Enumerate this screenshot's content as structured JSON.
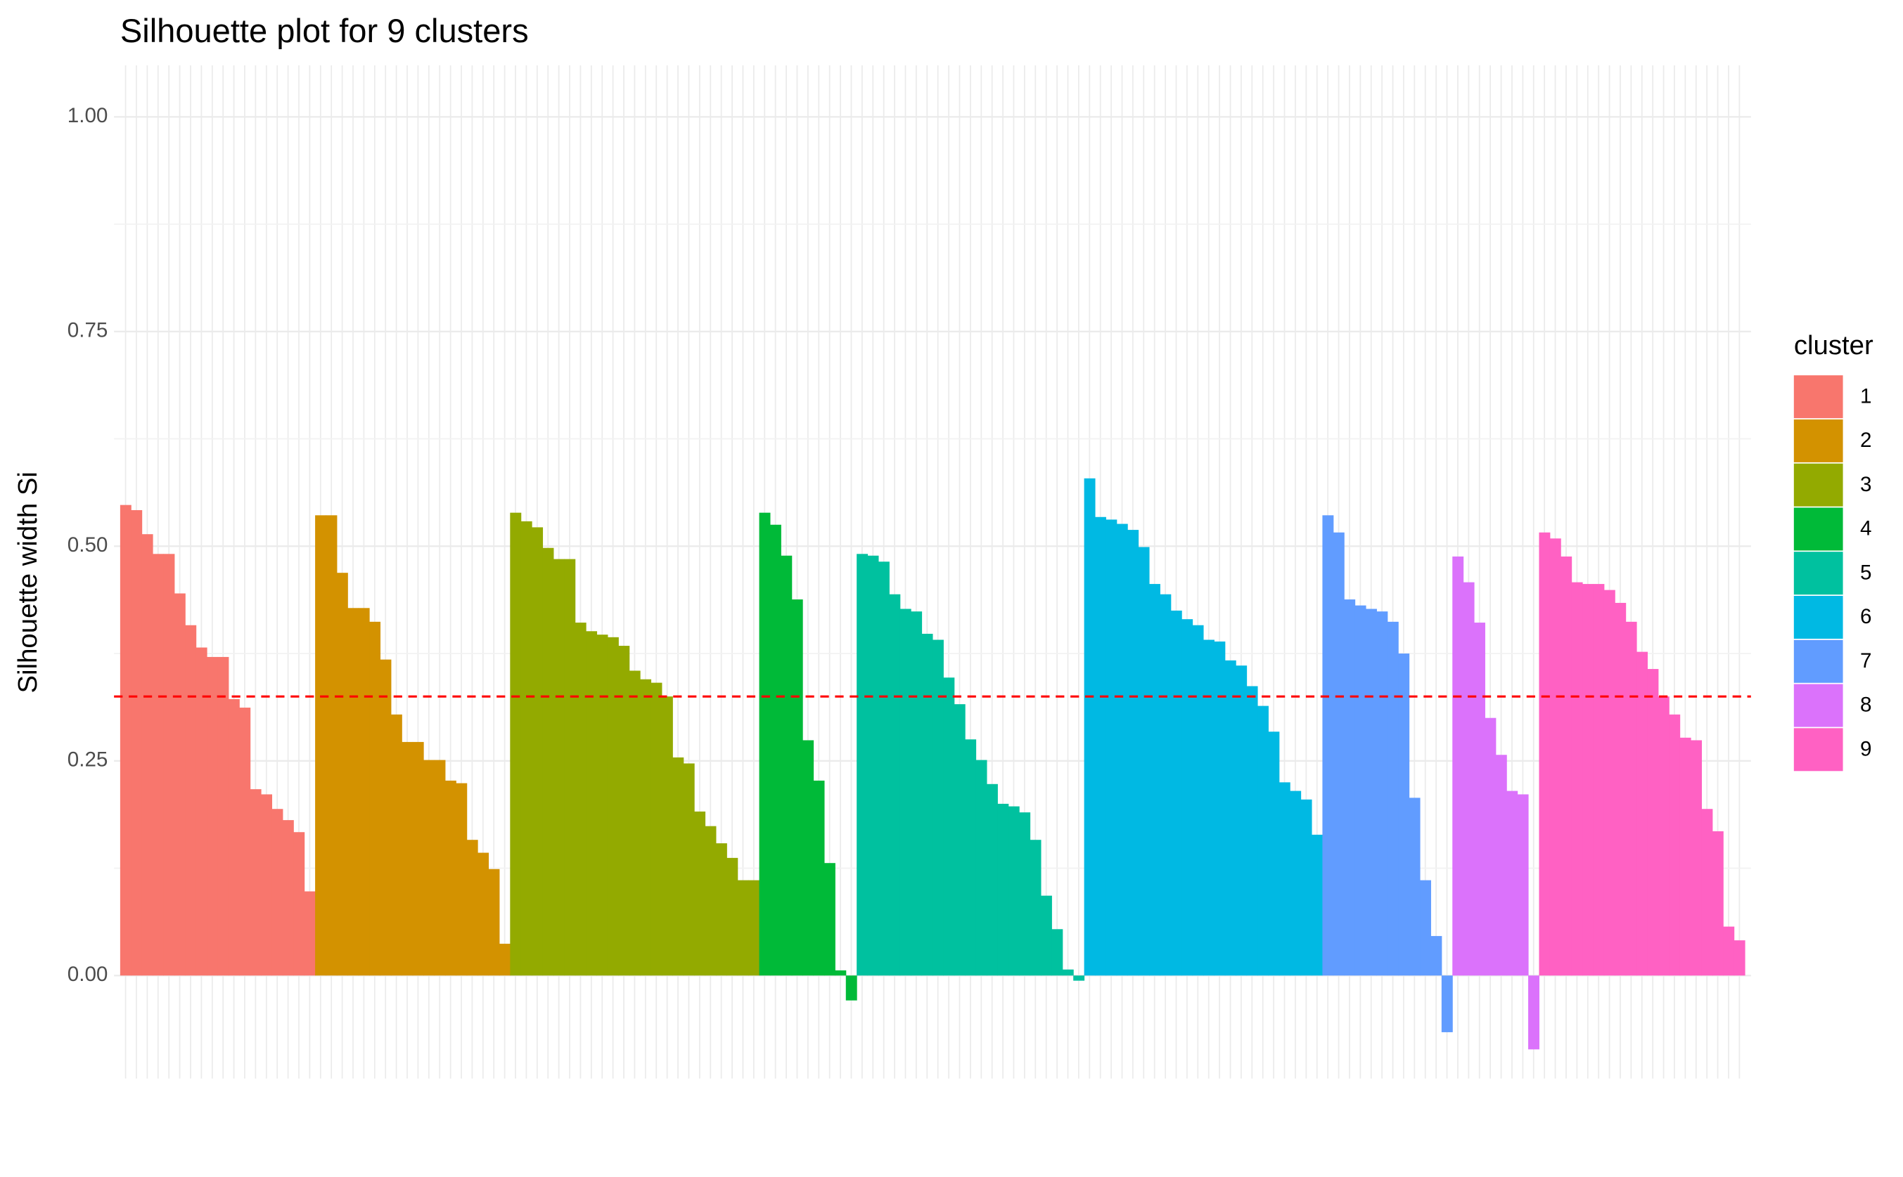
{
  "chart_data": {
    "type": "bar",
    "title": "Silhouette plot for 9 clusters",
    "y_label": "Silhouette width Si",
    "legend_title": "cluster",
    "ylim": [
      -0.12,
      1.06
    ],
    "yticks": [
      {
        "value": 0,
        "label": "0.00"
      },
      {
        "value": 0.25,
        "label": "0.25"
      },
      {
        "value": 0.5,
        "label": "0.50"
      },
      {
        "value": 0.75,
        "label": "0.75"
      },
      {
        "value": 1,
        "label": "1.00"
      }
    ],
    "grid": true,
    "legend": "right",
    "mean_line": {
      "value": 0.325,
      "color": "#ff0000"
    },
    "series": [
      {
        "name": "1",
        "color": "#F8766D",
        "values": [
          0.548,
          0.542,
          0.514,
          0.491,
          0.491,
          0.445,
          0.408,
          0.382,
          0.371,
          0.371,
          0.322,
          0.312,
          0.217,
          0.211,
          0.194,
          0.181,
          0.167,
          0.098
        ]
      },
      {
        "name": "2",
        "color": "#D39200",
        "values": [
          0.536,
          0.536,
          0.469,
          0.428,
          0.428,
          0.412,
          0.368,
          0.304,
          0.272,
          0.272,
          0.251,
          0.251,
          0.227,
          0.224,
          0.158,
          0.143,
          0.124,
          0.037
        ]
      },
      {
        "name": "3",
        "color": "#93AA00",
        "values": [
          0.539,
          0.529,
          0.522,
          0.498,
          0.485,
          0.485,
          0.411,
          0.401,
          0.397,
          0.394,
          0.384,
          0.355,
          0.345,
          0.341,
          0.325,
          0.254,
          0.247,
          0.191,
          0.174,
          0.154,
          0.137,
          0.111,
          0.111
        ]
      },
      {
        "name": "4",
        "color": "#00BA38",
        "values": [
          0.539,
          0.525,
          0.489,
          0.438,
          0.274,
          0.227,
          0.131,
          0.006,
          -0.029
        ]
      },
      {
        "name": "5",
        "color": "#00C19F",
        "values": [
          0.491,
          0.489,
          0.482,
          0.444,
          0.427,
          0.424,
          0.398,
          0.391,
          0.347,
          0.316,
          0.275,
          0.251,
          0.223,
          0.2,
          0.197,
          0.19,
          0.158,
          0.093,
          0.054,
          0.007,
          -0.006
        ]
      },
      {
        "name": "6",
        "color": "#00B9E3",
        "values": [
          0.579,
          0.534,
          0.531,
          0.526,
          0.519,
          0.499,
          0.456,
          0.444,
          0.425,
          0.415,
          0.408,
          0.391,
          0.389,
          0.367,
          0.361,
          0.337,
          0.314,
          0.284,
          0.225,
          0.215,
          0.205,
          0.164
        ]
      },
      {
        "name": "7",
        "color": "#619CFF",
        "values": [
          0.536,
          0.516,
          0.438,
          0.431,
          0.427,
          0.424,
          0.412,
          0.375,
          0.207,
          0.111,
          0.046,
          -0.066
        ]
      },
      {
        "name": "8",
        "color": "#DB72FB",
        "values": [
          0.488,
          0.458,
          0.411,
          0.3,
          0.257,
          0.215,
          0.211,
          -0.086
        ]
      },
      {
        "name": "9",
        "color": "#FF61C3",
        "values": [
          0.516,
          0.509,
          0.488,
          0.458,
          0.456,
          0.456,
          0.449,
          0.434,
          0.412,
          0.377,
          0.357,
          0.325,
          0.304,
          0.277,
          0.274,
          0.194,
          0.168,
          0.057,
          0.041
        ]
      }
    ]
  }
}
